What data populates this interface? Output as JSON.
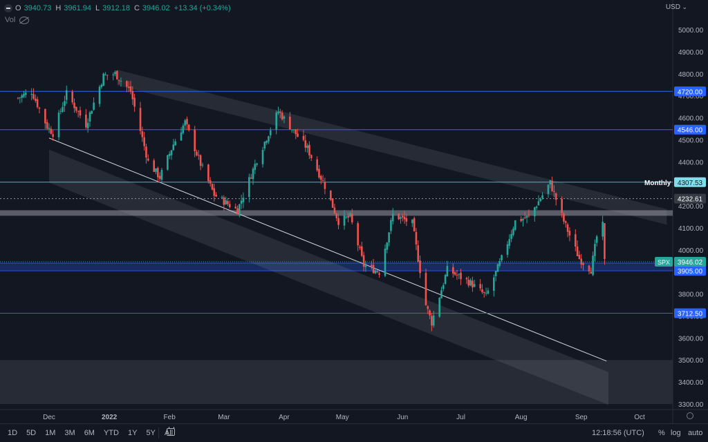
{
  "legend": {
    "o_label": "O",
    "o_val": "3940.73",
    "h_label": "H",
    "h_val": "3961.94",
    "l_label": "L",
    "l_val": "3912.18",
    "c_label": "C",
    "c_val": "3946.02",
    "change": "+13.34 (+0.34%)",
    "vol_label": "Vol"
  },
  "currency": "USD",
  "bottom": {
    "ranges": [
      "1D",
      "5D",
      "1M",
      "3M",
      "6M",
      "YTD",
      "1Y",
      "5Y",
      "All"
    ],
    "clock": "12:18:56 (UTC)",
    "pct": "%",
    "log": "log",
    "auto": "auto"
  },
  "colors": {
    "background": "#131722",
    "up": "#26a69a",
    "down": "#ef5350",
    "level_line": "#2962ff",
    "monthly_line": "#26c6da"
  },
  "chart_data": {
    "type": "candlestick",
    "symbol": "SPX",
    "ylim": [
      3300,
      5000
    ],
    "y_ticks": [
      5000,
      4900,
      4800,
      4700,
      4600,
      4500,
      4400,
      4300,
      4200,
      4100,
      4000,
      3900,
      3800,
      3700,
      3600,
      3500,
      3400,
      3300
    ],
    "y_tick_labels": [
      "5000.00",
      "4900.00",
      "4800.00",
      "4700.00",
      "4600.00",
      "4500.00",
      "4400.00",
      "4300.00",
      "4200.00",
      "4100.00",
      "4000.00",
      "3900.00",
      "3800.00",
      "3700.00",
      "3600.00",
      "3500.00",
      "3400.00",
      "3300.00"
    ],
    "x_ticks": [
      "Dec",
      "2022",
      "Feb",
      "Mar",
      "Apr",
      "May",
      "Jun",
      "Jul",
      "Aug",
      "Sep",
      "Oct"
    ],
    "x_tick_dates": [
      "2021-12-01",
      "2022-01-01",
      "2022-02-01",
      "2022-03-01",
      "2022-04-01",
      "2022-05-01",
      "2022-06-01",
      "2022-07-01",
      "2022-08-01",
      "2022-09-01",
      "2022-10-01"
    ],
    "last_date": "2022-09-13",
    "close_path": [
      [
        "2021-11-15",
        4690
      ],
      [
        "2021-11-22",
        4720
      ],
      [
        "2021-11-30",
        4560
      ],
      [
        "2021-12-03",
        4530
      ],
      [
        "2021-12-10",
        4710
      ],
      [
        "2021-12-20",
        4570
      ],
      [
        "2021-12-29",
        4790
      ],
      [
        "2022-01-04",
        4800
      ],
      [
        "2022-01-12",
        4720
      ],
      [
        "2022-01-21",
        4400
      ],
      [
        "2022-01-27",
        4330
      ],
      [
        "2022-02-03",
        4480
      ],
      [
        "2022-02-09",
        4580
      ],
      [
        "2022-02-17",
        4390
      ],
      [
        "2022-02-24",
        4250
      ],
      [
        "2022-03-08",
        4180
      ],
      [
        "2022-03-18",
        4410
      ],
      [
        "2022-03-29",
        4630
      ],
      [
        "2022-04-05",
        4550
      ],
      [
        "2022-04-13",
        4460
      ],
      [
        "2022-04-22",
        4290
      ],
      [
        "2022-04-29",
        4130
      ],
      [
        "2022-05-05",
        4150
      ],
      [
        "2022-05-12",
        3930
      ],
      [
        "2022-05-20",
        3900
      ],
      [
        "2022-05-27",
        4160
      ],
      [
        "2022-06-06",
        4120
      ],
      [
        "2022-06-13",
        3750
      ],
      [
        "2022-06-16",
        3670
      ],
      [
        "2022-06-24",
        3910
      ],
      [
        "2022-07-06",
        3850
      ],
      [
        "2022-07-14",
        3790
      ],
      [
        "2022-07-22",
        3960
      ],
      [
        "2022-07-29",
        4130
      ],
      [
        "2022-08-05",
        4150
      ],
      [
        "2022-08-16",
        4305
      ],
      [
        "2022-08-23",
        4130
      ],
      [
        "2022-08-31",
        3960
      ],
      [
        "2022-09-06",
        3910
      ],
      [
        "2022-09-09",
        4060
      ],
      [
        "2022-09-12",
        4110
      ],
      [
        "2022-09-13",
        3946
      ]
    ],
    "horizontal_levels": [
      {
        "price": 4720.0,
        "label": "4720.00",
        "color": "#2962ff"
      },
      {
        "price": 4546.0,
        "label": "4546.00",
        "color": "#2962ff"
      },
      {
        "price": 4307.53,
        "label": "4307.53",
        "color": "#26c6da",
        "text": "Monthly"
      },
      {
        "price": 4232.61,
        "label": "4232.61",
        "color": "#9598a1",
        "dashed": true
      },
      {
        "price": 3712.5,
        "label": "3712.50",
        "color": "#2962ff"
      }
    ],
    "zones": [
      {
        "from": 4155,
        "to": 4180,
        "color": "#9598a1"
      },
      {
        "from": 3905,
        "to": 3940,
        "color": "#2962ff"
      },
      {
        "from": 3300,
        "to": 3500,
        "color": "#2a2e39"
      }
    ],
    "zone_labels": [
      {
        "price": 3940.0,
        "label": "3940.00"
      },
      {
        "price": 3905.0,
        "label": "3905.00"
      }
    ],
    "last_price": {
      "price": 3946.02,
      "label": "3946.02",
      "symbol_tag": "SPX"
    },
    "channels": [
      {
        "from": [
          "2022-01-05",
          4818
        ],
        "to": [
          "2022-10-15",
          4185
        ],
        "width": 45
      },
      {
        "from": [
          "2021-12-01",
          4455
        ],
        "to": [
          "2022-09-15",
          3445
        ],
        "width": 95
      }
    ],
    "trendline": {
      "from": [
        "2021-12-01",
        4508
      ],
      "to": [
        "2022-09-14",
        3495
      ]
    }
  }
}
